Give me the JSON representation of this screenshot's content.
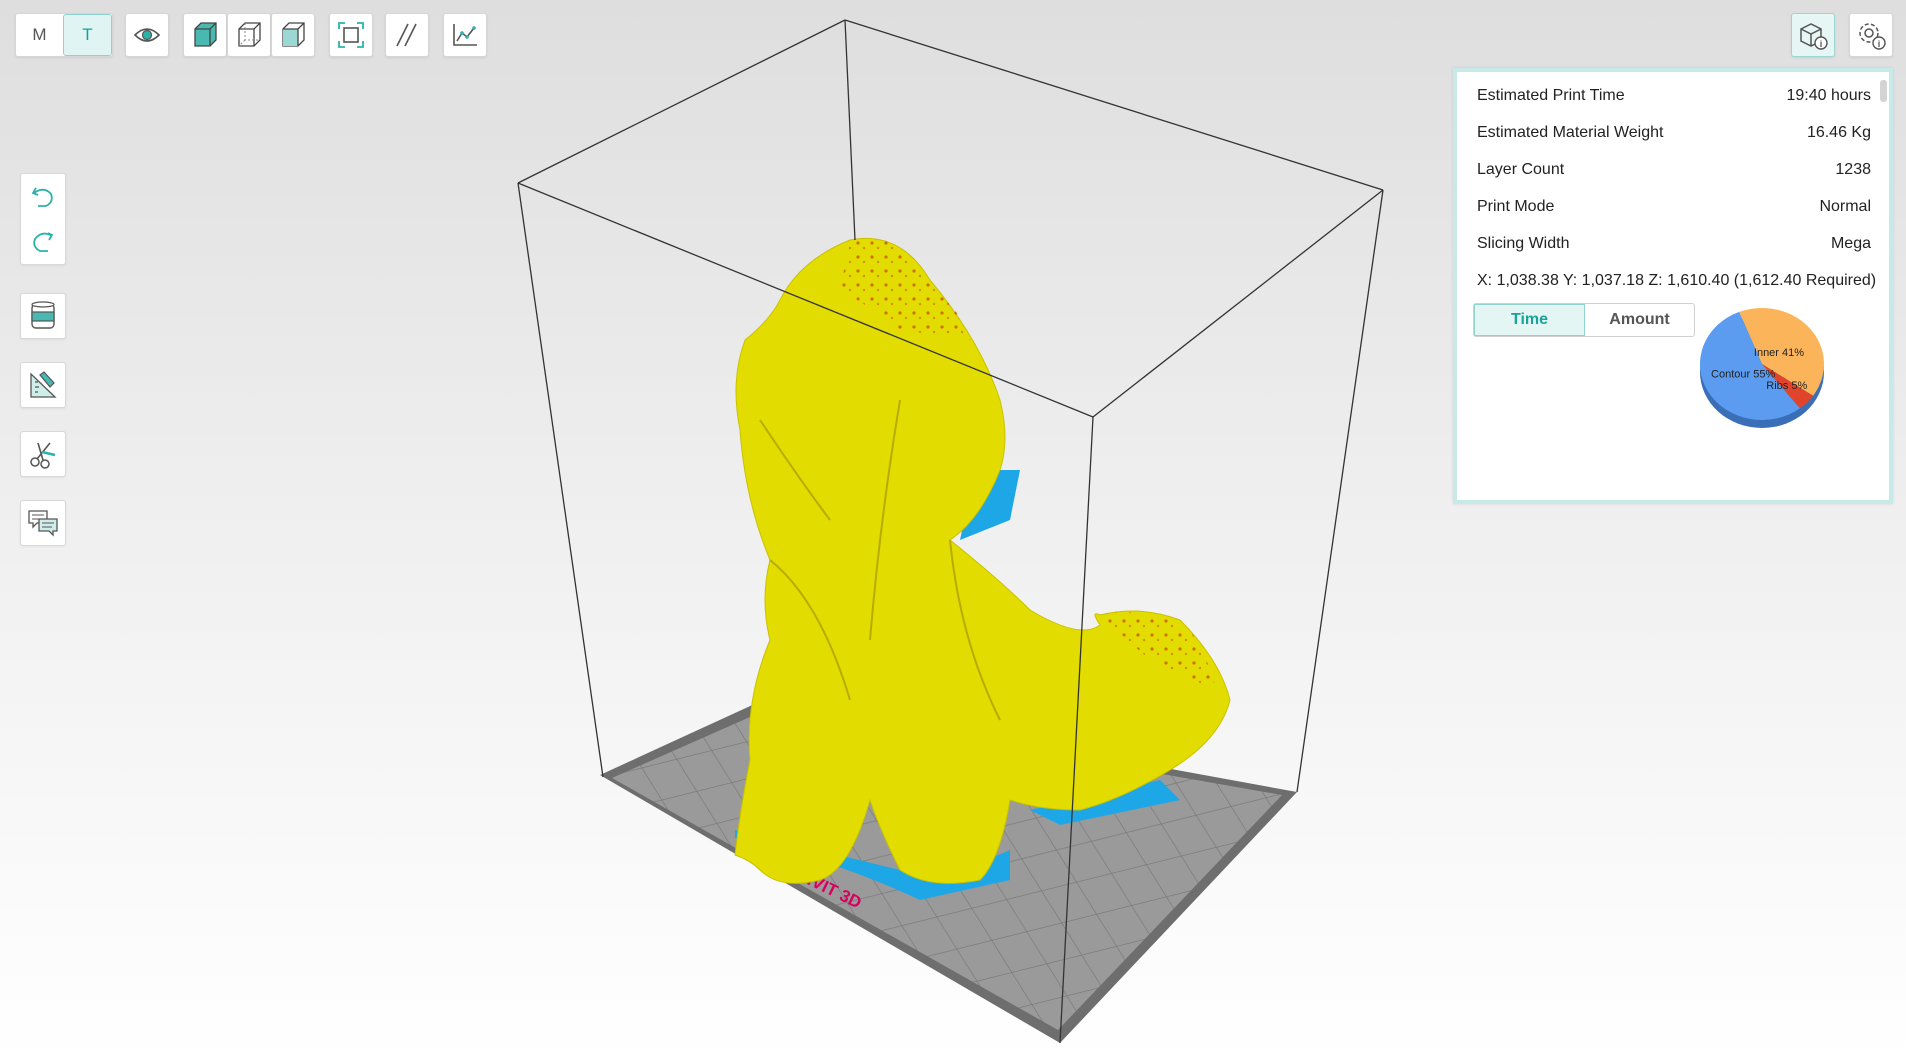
{
  "toolbar": {
    "mode_m": "M",
    "mode_t": "T",
    "active_mode": "T"
  },
  "info": {
    "rows": [
      {
        "label": "Estimated Print Time",
        "value": "19:40 hours"
      },
      {
        "label": "Estimated Material Weight",
        "value": "16.46 Kg"
      },
      {
        "label": "Layer Count",
        "value": "1238"
      },
      {
        "label": "Print Mode",
        "value": "Normal"
      },
      {
        "label": "Slicing Width",
        "value": "Mega"
      }
    ],
    "coords": "X: 1,038.38  Y: 1,037.18  Z: 1,610.40 (1,612.40 Required)",
    "tabs": [
      "Time",
      "Amount"
    ],
    "active_tab": "Time"
  },
  "chart_data": {
    "type": "pie",
    "slices": [
      {
        "label": "Inner",
        "percent": 41,
        "display": "Inner 41%",
        "color": "#fbb45a"
      },
      {
        "label": "Ribs",
        "percent": 5,
        "display": "Ribs 5%",
        "color": "#e0452b"
      },
      {
        "label": "Contour",
        "percent": 55,
        "display": "Contour 55%",
        "color": "#5b9bf0"
      }
    ]
  },
  "bed": {
    "logo_text": "MASSIVIT 3D"
  },
  "colors": {
    "accent": "#14a39a",
    "model": "#e3dd00",
    "support": "#1ea7e6",
    "bed": "#9a9a9a"
  },
  "icons": [
    "eye-icon",
    "solid-cube-icon",
    "wire-cube-icon",
    "xray-cube-icon",
    "fit-view-icon",
    "slash-lines-icon",
    "graph-icon",
    "undo-icon",
    "redo-icon",
    "material-cartridge-icon",
    "ruler-icon",
    "cut-icon",
    "comments-icon",
    "model-info-icon",
    "settings-info-icon"
  ]
}
